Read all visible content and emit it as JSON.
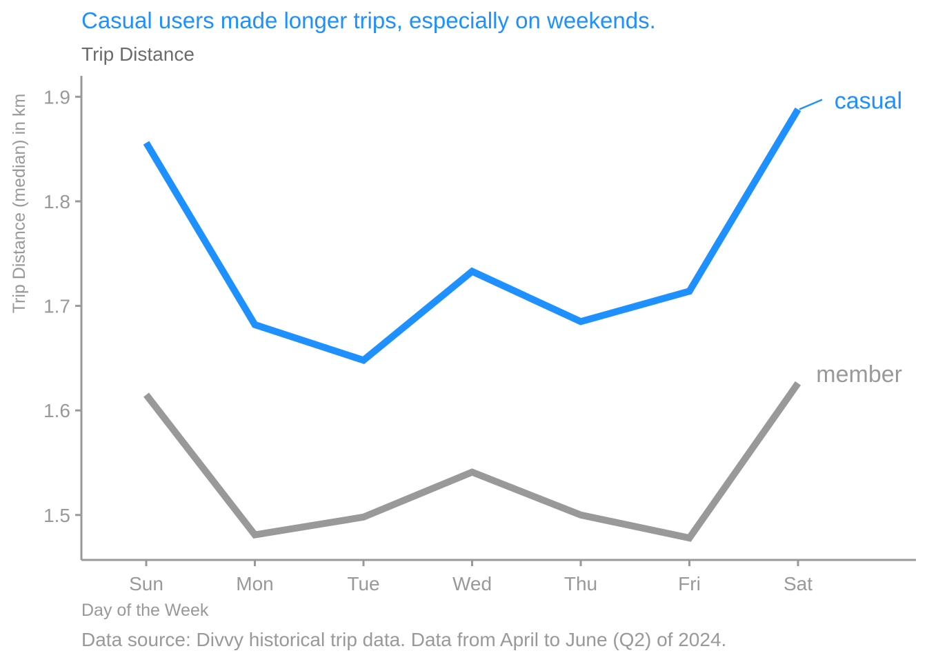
{
  "chart_data": {
    "type": "line",
    "title": "Casual users made longer trips, especially on weekends.",
    "subtitle": "Trip Distance",
    "xlabel": "Day of the Week",
    "ylabel": "Trip Distance (median) in km",
    "caption": "Data source: Divvy historical trip data. Data from April to June (Q2) of 2024.",
    "categories": [
      "Sun",
      "Mon",
      "Tue",
      "Wed",
      "Thu",
      "Fri",
      "Sat"
    ],
    "ylim": [
      1.457,
      1.92
    ],
    "yticks": [
      1.5,
      1.6,
      1.7,
      1.8,
      1.9
    ],
    "ytick_labels": [
      "1.5",
      "1.6",
      "1.7",
      "1.8",
      "1.9"
    ],
    "grid": false,
    "legend": "direct labels at right end of lines",
    "series": [
      {
        "name": "casual",
        "color": "#1E90FF",
        "values": [
          1.856,
          1.682,
          1.648,
          1.733,
          1.685,
          1.714,
          1.888
        ]
      },
      {
        "name": "member",
        "color": "#999999",
        "values": [
          1.615,
          1.481,
          1.498,
          1.541,
          1.5,
          1.478,
          1.626
        ]
      }
    ]
  }
}
